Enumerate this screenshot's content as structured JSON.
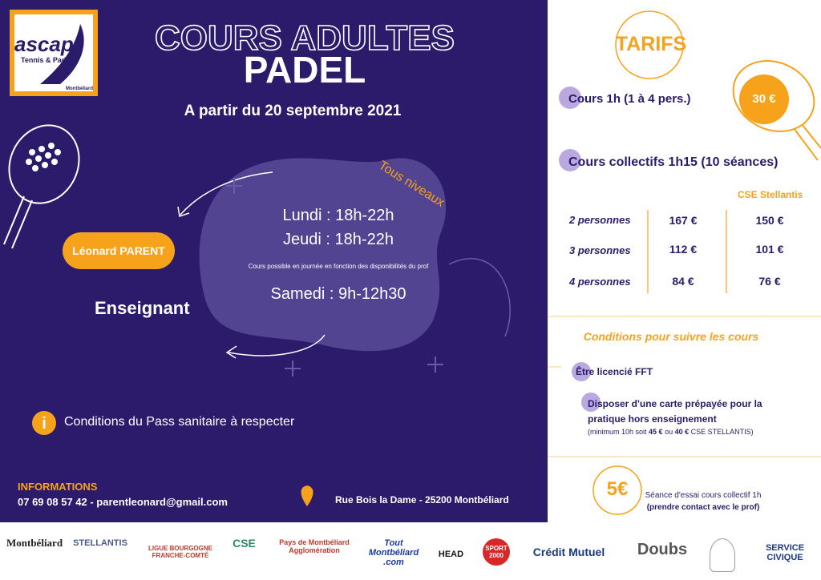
{
  "logo": {
    "name": "ascap",
    "subtitle": "Tennis & Padel",
    "city": "Montbéliard"
  },
  "header": {
    "title_1": "COURS ADULTES",
    "title_2": "PADEL",
    "start": "A partir du 20 septembre 2021"
  },
  "level": "Tous niveaux",
  "schedule": {
    "lines": [
      "Lundi : 18h-22h",
      "Jeudi : 18h-22h"
    ],
    "note": "Cours possible en journée en fonction des disponibilités du prof",
    "saturday": "Samedi : 9h-12h30"
  },
  "teacher": {
    "name": "Léonard PARENT",
    "role": "Enseignant"
  },
  "notice": "Conditions du Pass sanitaire à respecter",
  "informations": {
    "title": "INFORMATIONS",
    "contact": "07 69 08 57 42 - parentleonard@gmail.com",
    "address": "Rue Bois la Dame - 25200 Montbéliard"
  },
  "tarifs": {
    "title": "TARIFS",
    "single": {
      "label": "Cours 1h (1 à 4 pers.)",
      "price": "30 €"
    },
    "collective": {
      "label": "Cours collectifs 1h15 (10 séances)",
      "cse_header": "CSE Stellantis",
      "rows": [
        [
          "2 personnes",
          "167 €",
          "150 €"
        ],
        [
          "3 personnes",
          "112 €",
          "101 €"
        ],
        [
          "4 personnes",
          "84 €",
          "76 €"
        ]
      ]
    }
  },
  "conditions": {
    "title": "Conditions pour suivre les cours",
    "items": [
      "Être licencié FFT",
      "Disposer d'une carte prépayée pour la",
      "pratique hors enseignement"
    ],
    "note": [
      "(minimum 10h soit ",
      "45 €",
      " ou ",
      "40 €",
      "  CSE STELLANTIS)"
    ]
  },
  "trial": {
    "price": "5€",
    "text_1": "Séance d'essai cours collectif 1h",
    "text_2": "(prendre contact avec le prof)"
  },
  "sponsors": [
    "Montbéliard",
    "STELLANTIS",
    "LIGUE BOURGOGNE FRANCHE-COMTÉ",
    "CSE",
    "Pays de Montbéliard Agglomération",
    "Tout Montbéliard .com",
    "HEAD",
    "SPORT 2000",
    "Crédit Mutuel",
    "Doubs",
    "SERVICE CIVIQUE"
  ]
}
